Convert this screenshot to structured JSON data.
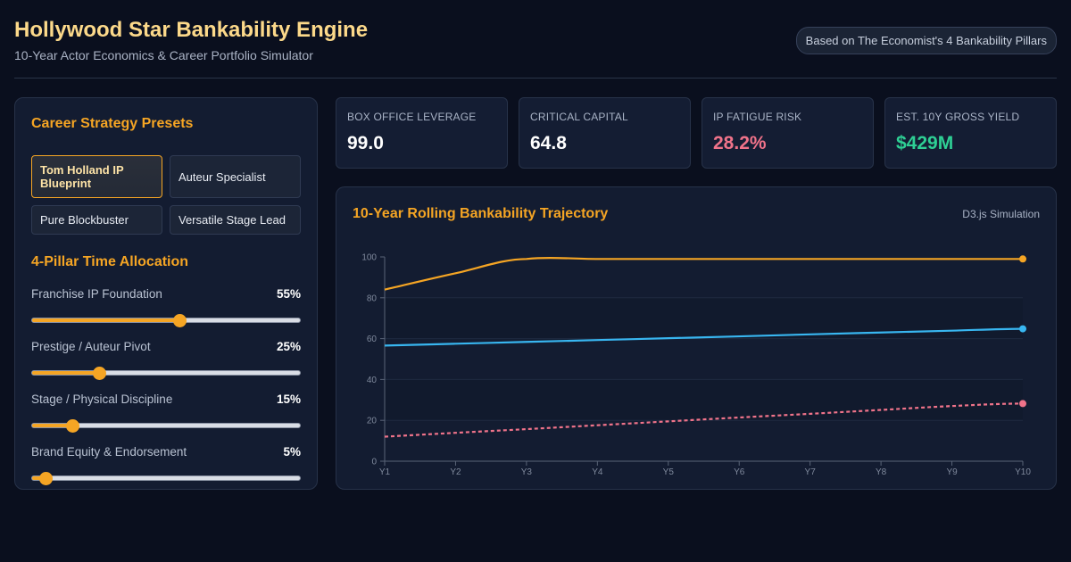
{
  "header": {
    "title": "Hollywood Star Bankability Engine",
    "subtitle": "10-Year Actor Economics & Career Portfolio Simulator",
    "badge": "Based on The Economist's 4 Bankability Pillars"
  },
  "presets": {
    "title": "Career Strategy Presets",
    "items": [
      {
        "label": "Tom Holland IP Blueprint",
        "active": true
      },
      {
        "label": "Auteur Specialist",
        "active": false
      },
      {
        "label": "Pure Blockbuster",
        "active": false
      },
      {
        "label": "Versatile Stage Lead",
        "active": false
      }
    ]
  },
  "allocation": {
    "title": "4-Pillar Time Allocation",
    "sliders": [
      {
        "label": "Franchise IP Foundation",
        "value": 55,
        "display": "55%"
      },
      {
        "label": "Prestige / Auteur Pivot",
        "value": 25,
        "display": "25%"
      },
      {
        "label": "Stage / Physical Discipline",
        "value": 15,
        "display": "15%"
      },
      {
        "label": "Brand Equity & Endorsement",
        "value": 5,
        "display": "5%"
      }
    ]
  },
  "kpis": [
    {
      "label": "BOX OFFICE LEVERAGE",
      "value": "99.0"
    },
    {
      "label": "CRITICAL CAPITAL",
      "value": "64.8"
    },
    {
      "label": "IP FATIGUE RISK",
      "value": "28.2%"
    },
    {
      "label": "EST. 10Y GROSS YIELD",
      "value": "$429M"
    }
  ],
  "chart": {
    "title": "10-Year Rolling Bankability Trajectory",
    "tag": "D3.js Simulation"
  },
  "colors": {
    "accent": "#f5a524",
    "critical": "#38b6f0",
    "risk": "#f0738a",
    "yield": "#2ecf94"
  },
  "chart_data": {
    "type": "line",
    "title": "10-Year Rolling Bankability Trajectory",
    "xlabel": "",
    "ylabel": "",
    "x": [
      "Y1",
      "Y2",
      "Y3",
      "Y4",
      "Y5",
      "Y6",
      "Y7",
      "Y8",
      "Y9",
      "Y10"
    ],
    "ylim": [
      0,
      100
    ],
    "yticks": [
      0,
      20,
      40,
      60,
      80,
      100
    ],
    "grid": true,
    "series": [
      {
        "color": "#f5a524",
        "dashed": false,
        "values": [
          84,
          92,
          99,
          99,
          99,
          99,
          99,
          99,
          99,
          99
        ]
      },
      {
        "color": "#38b6f0",
        "dashed": false,
        "values": [
          56.6,
          57.5,
          58.4,
          59.3,
          60.2,
          61.1,
          62.1,
          63.0,
          63.9,
          64.8
        ]
      },
      {
        "color": "#f0738a",
        "dashed": true,
        "values": [
          12.0,
          13.9,
          15.7,
          17.6,
          19.5,
          21.4,
          23.2,
          25.1,
          27.0,
          28.2
        ]
      }
    ]
  }
}
